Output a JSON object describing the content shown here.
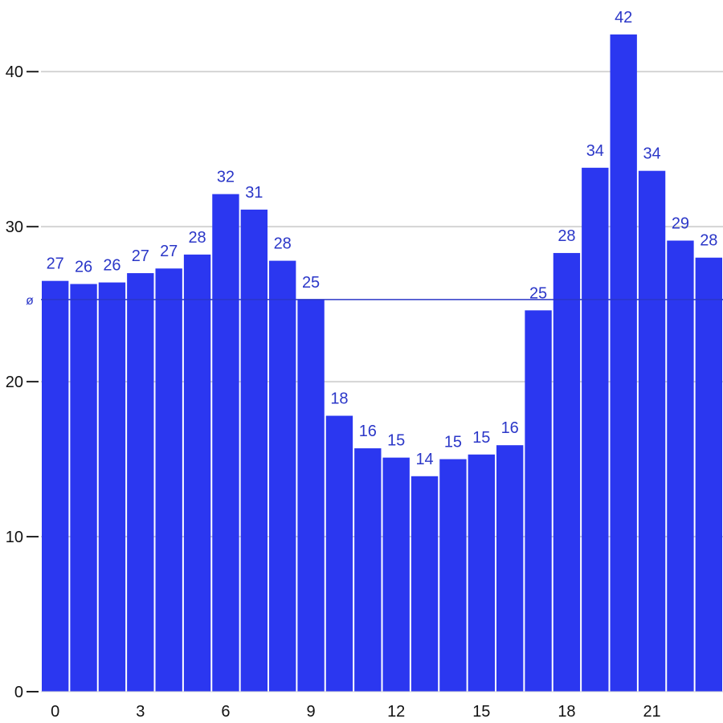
{
  "chart_data": {
    "type": "bar",
    "categories": [
      "0",
      "1",
      "2",
      "3",
      "4",
      "5",
      "6",
      "7",
      "8",
      "9",
      "10",
      "11",
      "12",
      "13",
      "14",
      "15",
      "16",
      "17",
      "18",
      "19",
      "20",
      "21",
      "22",
      "23"
    ],
    "values": [
      26.5,
      26.3,
      26.4,
      27.0,
      27.3,
      28.2,
      32.1,
      31.1,
      27.8,
      25.3,
      17.8,
      15.7,
      15.1,
      13.9,
      15.0,
      15.3,
      15.9,
      24.6,
      28.3,
      33.8,
      42.4,
      33.6,
      29.1,
      28.0
    ],
    "value_labels": [
      "27",
      "26",
      "26",
      "27",
      "27",
      "28",
      "32",
      "31",
      "28",
      "25",
      "18",
      "16",
      "15",
      "14",
      "15",
      "15",
      "16",
      "25",
      "28",
      "34",
      "42",
      "34",
      "29",
      "28"
    ],
    "x_tick_labels": [
      "0",
      "3",
      "6",
      "9",
      "12",
      "15",
      "18",
      "21"
    ],
    "x_tick_values": [
      0,
      3,
      6,
      9,
      12,
      15,
      18,
      21
    ],
    "y_ticks": [
      0,
      10,
      20,
      30,
      40
    ],
    "y_tick_labels": [
      "0",
      "10",
      "20",
      "30",
      "40"
    ],
    "ylim": [
      0,
      44
    ],
    "mean": 25.3,
    "mean_label": "ø",
    "grid": true,
    "bar_color": "#2b37f0",
    "label_color": "#2b37c8",
    "title": "",
    "xlabel": "",
    "ylabel": ""
  }
}
